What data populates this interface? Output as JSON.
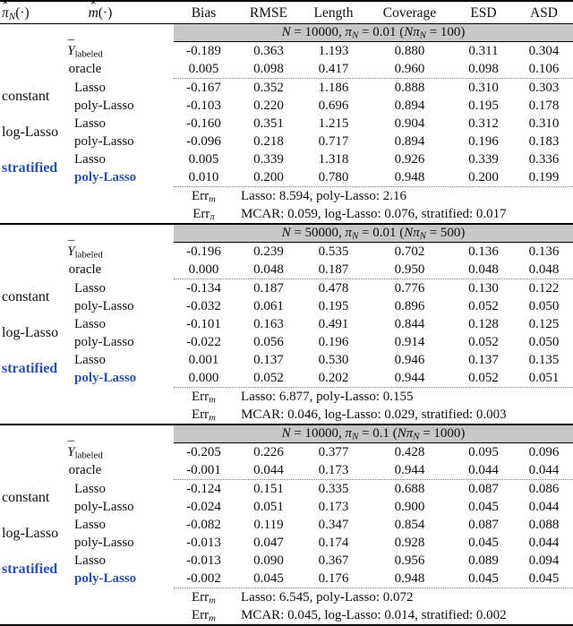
{
  "colors": {
    "banner_bg": "#c7c7c7",
    "highlight": "#2a4fae",
    "rule": "#000000"
  },
  "header": {
    "pi_html": "<span class='acc'><span class='accmark'>ˆ</span><i>π</i></span><sub><i>N</i></sub>(·)",
    "m_html": "<span class='acc'><span class='accmark'>ˆ</span><i>m</i></span>(·)",
    "metrics": [
      "Bias",
      "RMSE",
      "Length",
      "Coverage",
      "ESD",
      "ASD"
    ]
  },
  "sections": [
    {
      "banner_html": "<i>N</i> = 10000, <i>π</i><sub><i>N</i></sub> = 0.01 (<i>Nπ</i><sub><i>N</i></sub> = 100)",
      "baseline_rows": [
        {
          "label_html": "<span class='acc'><span class='accmark bar'>¯</span><i>Y</i></span><sub>labeled</sub>",
          "values": [
            "-0.189",
            "0.363",
            "1.193",
            "0.880",
            "0.311",
            "0.304"
          ]
        },
        {
          "label_html": "oracle",
          "values": [
            "0.005",
            "0.098",
            "0.417",
            "0.960",
            "0.098",
            "0.106"
          ]
        }
      ],
      "groups": [
        {
          "pi_label": "constant",
          "highlight": false,
          "rows": [
            {
              "m_label": "Lasso",
              "highlight": false,
              "values": [
                "-0.167",
                "0.352",
                "1.186",
                "0.888",
                "0.310",
                "0.303"
              ]
            },
            {
              "m_label": "poly-Lasso",
              "highlight": false,
              "values": [
                "-0.103",
                "0.220",
                "0.696",
                "0.894",
                "0.195",
                "0.178"
              ]
            }
          ]
        },
        {
          "pi_label": "log-Lasso",
          "highlight": false,
          "rows": [
            {
              "m_label": "Lasso",
              "highlight": false,
              "values": [
                "-0.160",
                "0.351",
                "1.215",
                "0.904",
                "0.312",
                "0.310"
              ]
            },
            {
              "m_label": "poly-Lasso",
              "highlight": false,
              "values": [
                "-0.096",
                "0.218",
                "0.717",
                "0.894",
                "0.196",
                "0.183"
              ]
            }
          ]
        },
        {
          "pi_label": "stratified",
          "highlight": true,
          "rows": [
            {
              "m_label": "Lasso",
              "highlight": false,
              "values": [
                "0.005",
                "0.339",
                "1.318",
                "0.926",
                "0.339",
                "0.336"
              ]
            },
            {
              "m_label": "poly-Lasso",
              "highlight": true,
              "values": [
                "0.010",
                "0.200",
                "0.780",
                "0.948",
                "0.200",
                "0.199"
              ]
            }
          ]
        }
      ],
      "err_rows": [
        {
          "label_html": "Err<sub><i>m</i></sub>",
          "text": "Lasso: 8.594, poly-Lasso: 2.16"
        },
        {
          "label_html": "Err<sub><i>π</i></sub>",
          "text": "MCAR: 0.059, log-Lasso: 0.076, stratified: 0.017"
        }
      ]
    },
    {
      "banner_html": "<i>N</i> = 50000, <i>π</i><sub><i>N</i></sub> = 0.01 (<i>Nπ</i><sub><i>N</i></sub> = 500)",
      "baseline_rows": [
        {
          "label_html": "<span class='acc'><span class='accmark bar'>¯</span><i>Y</i></span><sub>labeled</sub>",
          "values": [
            "-0.196",
            "0.239",
            "0.535",
            "0.702",
            "0.136",
            "0.136"
          ]
        },
        {
          "label_html": "oracle",
          "values": [
            "0.000",
            "0.048",
            "0.187",
            "0.950",
            "0.048",
            "0.048"
          ]
        }
      ],
      "groups": [
        {
          "pi_label": "constant",
          "highlight": false,
          "rows": [
            {
              "m_label": "Lasso",
              "highlight": false,
              "values": [
                "-0.134",
                "0.187",
                "0.478",
                "0.776",
                "0.130",
                "0.122"
              ]
            },
            {
              "m_label": "poly-Lasso",
              "highlight": false,
              "values": [
                "-0.032",
                "0.061",
                "0.195",
                "0.896",
                "0.052",
                "0.050"
              ]
            }
          ]
        },
        {
          "pi_label": "log-Lasso",
          "highlight": false,
          "rows": [
            {
              "m_label": "Lasso",
              "highlight": false,
              "values": [
                "-0.101",
                "0.163",
                "0.491",
                "0.844",
                "0.128",
                "0.125"
              ]
            },
            {
              "m_label": "poly-Lasso",
              "highlight": false,
              "values": [
                "-0.022",
                "0.056",
                "0.196",
                "0.914",
                "0.052",
                "0.050"
              ]
            }
          ]
        },
        {
          "pi_label": "stratified",
          "highlight": true,
          "rows": [
            {
              "m_label": "Lasso",
              "highlight": false,
              "values": [
                "0.001",
                "0.137",
                "0.530",
                "0.946",
                "0.137",
                "0.135"
              ]
            },
            {
              "m_label": "poly-Lasso",
              "highlight": true,
              "values": [
                "0.000",
                "0.052",
                "0.202",
                "0.944",
                "0.052",
                "0.051"
              ]
            }
          ]
        }
      ],
      "err_rows": [
        {
          "label_html": "Err<sub><i>m</i></sub>",
          "text": "Lasso: 6.877, poly-Lasso: 0.155"
        },
        {
          "label_html": "Err<sub><i>m</i></sub>",
          "text": "MCAR: 0.046, log-Lasso: 0.029, stratified: 0.003"
        }
      ]
    },
    {
      "banner_html": "<i>N</i> = 10000, <i>π</i><sub><i>N</i></sub> = 0.1 (<i>Nπ</i><sub><i>N</i></sub> = 1000)",
      "baseline_rows": [
        {
          "label_html": "<span class='acc'><span class='accmark bar'>¯</span><i>Y</i></span><sub>labeled</sub>",
          "values": [
            "-0.205",
            "0.226",
            "0.377",
            "0.428",
            "0.095",
            "0.096"
          ]
        },
        {
          "label_html": "oracle",
          "values": [
            "-0.001",
            "0.044",
            "0.173",
            "0.944",
            "0.044",
            "0.044"
          ]
        }
      ],
      "groups": [
        {
          "pi_label": "constant",
          "highlight": false,
          "rows": [
            {
              "m_label": "Lasso",
              "highlight": false,
              "values": [
                "-0.124",
                "0.151",
                "0.335",
                "0.688",
                "0.087",
                "0.086"
              ]
            },
            {
              "m_label": "poly-Lasso",
              "highlight": false,
              "values": [
                "-0.024",
                "0.051",
                "0.173",
                "0.900",
                "0.045",
                "0.044"
              ]
            }
          ]
        },
        {
          "pi_label": "log-Lasso",
          "highlight": false,
          "rows": [
            {
              "m_label": "Lasso",
              "highlight": false,
              "values": [
                "-0.082",
                "0.119",
                "0.347",
                "0.854",
                "0.087",
                "0.088"
              ]
            },
            {
              "m_label": "poly-Lasso",
              "highlight": false,
              "values": [
                "-0.013",
                "0.047",
                "0.174",
                "0.928",
                "0.045",
                "0.044"
              ]
            }
          ]
        },
        {
          "pi_label": "stratified",
          "highlight": true,
          "rows": [
            {
              "m_label": "Lasso",
              "highlight": false,
              "values": [
                "-0.013",
                "0.090",
                "0.367",
                "0.956",
                "0.089",
                "0.094"
              ]
            },
            {
              "m_label": "poly-Lasso",
              "highlight": true,
              "values": [
                "-0.002",
                "0.045",
                "0.176",
                "0.948",
                "0.045",
                "0.045"
              ]
            }
          ]
        }
      ],
      "err_rows": [
        {
          "label_html": "Err<sub><i>m</i></sub>",
          "text": "Lasso: 6.545, poly-Lasso: 0.072"
        },
        {
          "label_html": "Err<sub><i>m</i></sub>",
          "text": "MCAR: 0.045, log-Lasso: 0.014, stratified: 0.002"
        }
      ]
    }
  ]
}
